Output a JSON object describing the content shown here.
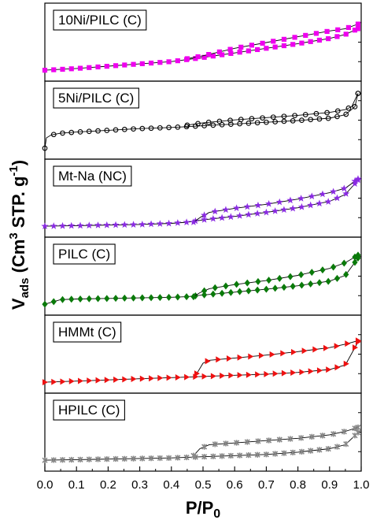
{
  "chart_data": {
    "type": "scatter",
    "xlabel": "P/P",
    "xlabel_sub": "0",
    "ylabel": {
      "main": "V",
      "sub": "ads",
      "paren_open": " (Cm",
      "sup1": "3",
      "mid": " STP. g",
      "sup2": "-1",
      "paren_close": ")"
    },
    "xlim": [
      0.0,
      1.0
    ],
    "xticks": [
      "0.0",
      "0.1",
      "0.2",
      "0.3",
      "0.4",
      "0.5",
      "0.6",
      "0.7",
      "0.8",
      "0.9",
      "1.0"
    ],
    "grid": false,
    "panels": [
      {
        "name": "10Ni/PILC (C)",
        "color": "#ee00ee",
        "marker": "square",
        "adsorption": {
          "x": [
            0.0,
            0.1,
            0.2,
            0.3,
            0.4,
            0.5,
            0.6,
            0.7,
            0.8,
            0.9,
            0.95,
            0.99
          ],
          "y": [
            0.0,
            0.03,
            0.07,
            0.11,
            0.15,
            0.22,
            0.3,
            0.38,
            0.46,
            0.55,
            0.62,
            0.72
          ]
        },
        "desorption": {
          "x": [
            0.99,
            0.95,
            0.9,
            0.8,
            0.7,
            0.6,
            0.5,
            0.45
          ],
          "y": [
            0.8,
            0.72,
            0.68,
            0.58,
            0.48,
            0.38,
            0.25,
            0.2
          ]
        }
      },
      {
        "name": "5Ni/PILC (C)",
        "color": "#000000",
        "marker": "circle",
        "adsorption": {
          "x": [
            0.0,
            0.005,
            0.02,
            0.05,
            0.1,
            0.2,
            0.3,
            0.4,
            0.5,
            0.6,
            0.7,
            0.8,
            0.9,
            0.95,
            0.98,
            0.99
          ],
          "y": [
            0.0,
            0.18,
            0.23,
            0.26,
            0.28,
            0.31,
            0.34,
            0.36,
            0.39,
            0.42,
            0.45,
            0.48,
            0.52,
            0.58,
            0.72,
            0.95
          ]
        },
        "desorption": {
          "x": [
            0.99,
            0.97,
            0.95,
            0.9,
            0.8,
            0.7,
            0.6,
            0.5,
            0.45
          ],
          "y": [
            0.95,
            0.72,
            0.67,
            0.62,
            0.57,
            0.53,
            0.49,
            0.44,
            0.4
          ]
        }
      },
      {
        "name": "Mt-Na (NC)",
        "color": "#8a2be2",
        "marker": "star",
        "adsorption": {
          "x": [
            0.0,
            0.1,
            0.2,
            0.3,
            0.4,
            0.45,
            0.5,
            0.6,
            0.7,
            0.8,
            0.9,
            0.95,
            0.99
          ],
          "y": [
            0.0,
            0.01,
            0.02,
            0.03,
            0.05,
            0.07,
            0.11,
            0.17,
            0.24,
            0.32,
            0.43,
            0.55,
            0.8
          ]
        },
        "desorption": {
          "x": [
            0.99,
            0.95,
            0.9,
            0.8,
            0.7,
            0.6,
            0.52,
            0.49,
            0.47
          ],
          "y": [
            0.82,
            0.66,
            0.58,
            0.47,
            0.38,
            0.31,
            0.24,
            0.15,
            0.07
          ]
        }
      },
      {
        "name": "PILC (C)",
        "color": "#0a7a0a",
        "marker": "diamond",
        "adsorption": {
          "x": [
            0.0,
            0.05,
            0.1,
            0.2,
            0.3,
            0.4,
            0.45,
            0.5,
            0.6,
            0.7,
            0.8,
            0.9,
            0.95,
            0.99
          ],
          "y": [
            0.0,
            0.08,
            0.09,
            0.1,
            0.11,
            0.12,
            0.13,
            0.16,
            0.21,
            0.26,
            0.32,
            0.4,
            0.5,
            0.8
          ]
        },
        "desorption": {
          "x": [
            0.99,
            0.95,
            0.9,
            0.8,
            0.7,
            0.6,
            0.52,
            0.49,
            0.47
          ],
          "y": [
            0.85,
            0.72,
            0.62,
            0.5,
            0.41,
            0.34,
            0.27,
            0.2,
            0.13
          ]
        }
      },
      {
        "name": "HMMt (C)",
        "color": "#ee1111",
        "marker": "triangle-right",
        "adsorption": {
          "x": [
            0.0,
            0.1,
            0.2,
            0.3,
            0.4,
            0.5,
            0.6,
            0.7,
            0.8,
            0.9,
            0.95,
            0.99
          ],
          "y": [
            0.0,
            0.02,
            0.04,
            0.06,
            0.08,
            0.1,
            0.12,
            0.14,
            0.17,
            0.22,
            0.3,
            0.7
          ]
        },
        "desorption": {
          "x": [
            0.99,
            0.95,
            0.9,
            0.8,
            0.7,
            0.6,
            0.52,
            0.5,
            0.48
          ],
          "y": [
            0.72,
            0.66,
            0.6,
            0.53,
            0.47,
            0.42,
            0.38,
            0.33,
            0.15
          ]
        }
      },
      {
        "name": "HPILC (C)",
        "color": "#888888",
        "marker": "cross",
        "adsorption": {
          "x": [
            0.0,
            0.1,
            0.2,
            0.3,
            0.4,
            0.5,
            0.6,
            0.7,
            0.8,
            0.9,
            0.95,
            0.99
          ],
          "y": [
            0.0,
            0.01,
            0.02,
            0.03,
            0.04,
            0.06,
            0.08,
            0.1,
            0.14,
            0.2,
            0.27,
            0.48
          ]
        },
        "desorption": {
          "x": [
            0.99,
            0.95,
            0.9,
            0.8,
            0.7,
            0.6,
            0.52,
            0.49,
            0.47
          ],
          "y": [
            0.57,
            0.5,
            0.44,
            0.38,
            0.34,
            0.3,
            0.27,
            0.2,
            0.08
          ]
        }
      }
    ]
  }
}
